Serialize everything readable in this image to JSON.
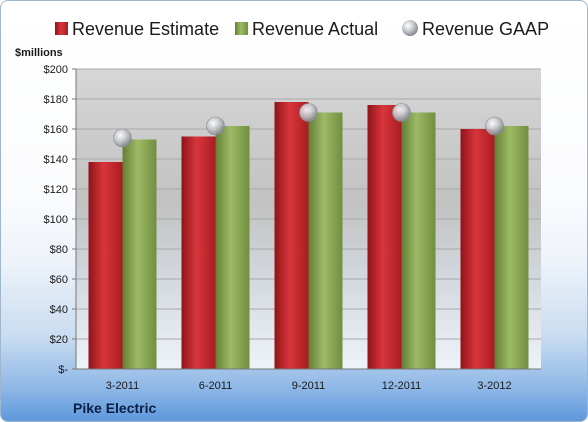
{
  "chart_data": {
    "type": "bar",
    "ylabel": "$millions",
    "footer_label": "Pike Electric",
    "categories": [
      "3-2011",
      "6-2011",
      "9-2011",
      "12-2011",
      "3-2012"
    ],
    "series": [
      {
        "name": "Revenue Estimate",
        "kind": "bar",
        "color": "#c8262b",
        "values": [
          138,
          155,
          178,
          176,
          160
        ]
      },
      {
        "name": "Revenue Actual",
        "kind": "bar",
        "color": "#8aaa55",
        "values": [
          153,
          162,
          171,
          171,
          162
        ]
      },
      {
        "name": "Revenue GAAP",
        "kind": "marker",
        "color": "#b9bcc2",
        "values": [
          154,
          162,
          171,
          171,
          162
        ]
      }
    ],
    "ylim": [
      0,
      200
    ],
    "yticks": [
      0,
      20,
      40,
      60,
      80,
      100,
      120,
      140,
      160,
      180,
      200
    ],
    "ytick_labels": [
      "$-",
      "$20",
      "$40",
      "$60",
      "$80",
      "$100",
      "$120",
      "$140",
      "$160",
      "$180",
      "$200"
    ],
    "grid": true,
    "legend_position": "top"
  }
}
